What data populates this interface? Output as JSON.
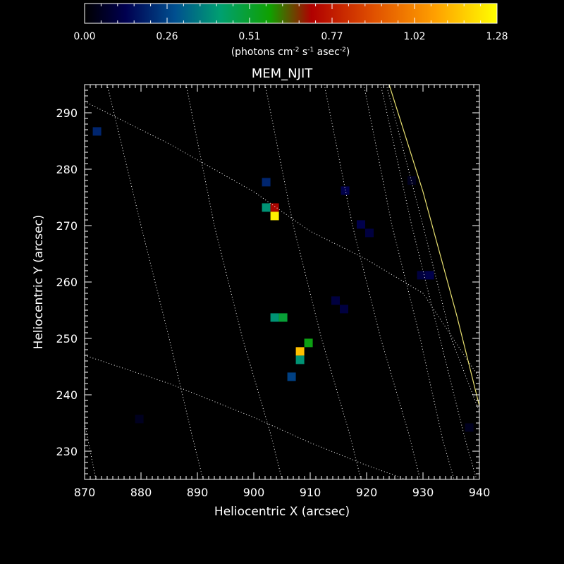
{
  "chart_data": {
    "type": "heatmap",
    "title": "MEM_NJIT",
    "xlabel": "Heliocentric X (arcsec)",
    "ylabel": "Heliocentric Y (arcsec)",
    "xlim": [
      870,
      940
    ],
    "ylim": [
      225,
      295
    ],
    "x_ticks": [
      870,
      880,
      890,
      900,
      910,
      920,
      930,
      940
    ],
    "y_ticks": [
      230,
      240,
      250,
      260,
      270,
      280,
      290
    ],
    "pixel_size_arcsec": 1.5,
    "colorbar": {
      "label_main": "(photons cm",
      "label_exp1": "-2",
      "label_mid1": " s",
      "label_exp2": "-1",
      "label_mid2": " asec",
      "label_exp3": "-2",
      "label_end": ")",
      "range": [
        0,
        1.28
      ],
      "ticks": [
        "0.00",
        "0.26",
        "0.51",
        "0.77",
        "1.02",
        "1.28"
      ],
      "tick_values": [
        0,
        0.256,
        0.512,
        0.768,
        1.024,
        1.28
      ],
      "stops": [
        {
          "v": 0.0,
          "color": "#000000"
        },
        {
          "v": 0.1,
          "color": "#000050"
        },
        {
          "v": 0.22,
          "color": "#005090"
        },
        {
          "v": 0.33,
          "color": "#00a070"
        },
        {
          "v": 0.45,
          "color": "#10a000"
        },
        {
          "v": 0.55,
          "color": "#b00000"
        },
        {
          "v": 0.7,
          "color": "#e05000"
        },
        {
          "v": 0.85,
          "color": "#ffa000"
        },
        {
          "v": 1.0,
          "color": "#ffff00"
        }
      ]
    },
    "pixels": [
      {
        "x": 872.2,
        "y": 286.7,
        "v": 0.2
      },
      {
        "x": 902.2,
        "y": 277.7,
        "v": 0.2
      },
      {
        "x": 902.2,
        "y": 273.2,
        "v": 0.4
      },
      {
        "x": 903.7,
        "y": 273.2,
        "v": 0.7
      },
      {
        "x": 903.7,
        "y": 271.7,
        "v": 1.25
      },
      {
        "x": 916.2,
        "y": 276.2,
        "v": 0.12
      },
      {
        "x": 919.0,
        "y": 270.2,
        "v": 0.12
      },
      {
        "x": 920.5,
        "y": 268.7,
        "v": 0.1
      },
      {
        "x": 929.7,
        "y": 261.2,
        "v": 0.1
      },
      {
        "x": 931.2,
        "y": 261.2,
        "v": 0.12
      },
      {
        "x": 914.5,
        "y": 256.7,
        "v": 0.1
      },
      {
        "x": 916.0,
        "y": 255.2,
        "v": 0.1
      },
      {
        "x": 903.7,
        "y": 253.7,
        "v": 0.4
      },
      {
        "x": 905.2,
        "y": 253.7,
        "v": 0.5
      },
      {
        "x": 909.7,
        "y": 249.2,
        "v": 0.55
      },
      {
        "x": 908.2,
        "y": 247.7,
        "v": 1.15
      },
      {
        "x": 908.2,
        "y": 246.2,
        "v": 0.4
      },
      {
        "x": 906.7,
        "y": 243.2,
        "v": 0.25
      },
      {
        "x": 879.7,
        "y": 235.7,
        "v": 0.05
      },
      {
        "x": 928.0,
        "y": 278.0,
        "v": 0.05
      },
      {
        "x": 938.2,
        "y": 234.2,
        "v": 0.05
      }
    ],
    "grid_lines": [
      {
        "kind": "latitude",
        "points": [
          [
            870,
            292
          ],
          [
            885,
            284.5
          ],
          [
            900,
            276
          ],
          [
            910,
            269
          ],
          [
            920,
            264
          ],
          [
            930,
            258
          ],
          [
            940,
            243
          ]
        ]
      },
      {
        "kind": "latitude",
        "points": [
          [
            870,
            247
          ],
          [
            885,
            242
          ],
          [
            900,
            236
          ],
          [
            910,
            231.5
          ],
          [
            920,
            227.5
          ],
          [
            927,
            225
          ]
        ]
      },
      {
        "kind": "longitude",
        "points": [
          [
            874,
            295
          ],
          [
            880,
            270
          ],
          [
            885,
            250
          ],
          [
            889,
            233
          ],
          [
            891,
            225
          ]
        ]
      },
      {
        "kind": "longitude",
        "points": [
          [
            870,
            235
          ],
          [
            871,
            230
          ],
          [
            872,
            225
          ]
        ]
      },
      {
        "kind": "longitude",
        "points": [
          [
            888,
            295
          ],
          [
            893,
            270
          ],
          [
            898,
            250
          ],
          [
            903,
            233
          ],
          [
            905,
            225
          ]
        ]
      },
      {
        "kind": "longitude",
        "points": [
          [
            902,
            295
          ],
          [
            907,
            270
          ],
          [
            912,
            250
          ],
          [
            917,
            233
          ],
          [
            919,
            225
          ]
        ]
      },
      {
        "kind": "longitude",
        "points": [
          [
            912.5,
            295
          ],
          [
            917.5,
            270
          ],
          [
            922.5,
            250
          ],
          [
            927.5,
            233
          ],
          [
            929.5,
            225
          ]
        ]
      },
      {
        "kind": "longitude",
        "points": [
          [
            919.5,
            295
          ],
          [
            924.5,
            270
          ],
          [
            929.5,
            250
          ],
          [
            933.5,
            232
          ],
          [
            935.5,
            225
          ]
        ]
      },
      {
        "kind": "longitude",
        "points": [
          [
            922.5,
            295
          ],
          [
            928,
            270
          ],
          [
            933,
            250
          ],
          [
            937.5,
            232
          ],
          [
            939.5,
            225
          ]
        ]
      },
      {
        "kind": "longitude",
        "points": [
          [
            923.5,
            295
          ],
          [
            930,
            270
          ],
          [
            935,
            250
          ],
          [
            940,
            237
          ]
        ]
      },
      {
        "kind": "limb",
        "points": [
          [
            924,
            295
          ],
          [
            930,
            276
          ],
          [
            936,
            254
          ],
          [
            940,
            238
          ]
        ]
      }
    ]
  }
}
